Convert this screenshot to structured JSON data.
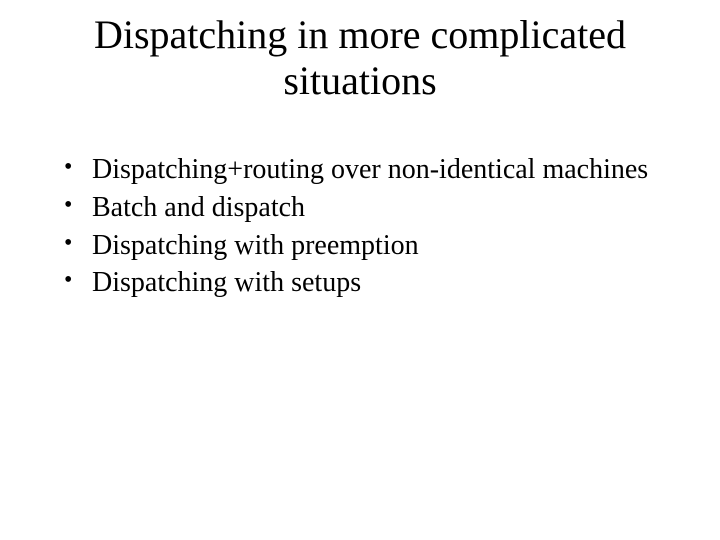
{
  "title": "Dispatching in more complicated situations",
  "bullets": [
    "Dispatching+routing over non-identical machines",
    "Batch and dispatch",
    "Dispatching with preemption",
    "Dispatching with setups"
  ],
  "style": {
    "background_color": "#ffffff",
    "text_color": "#000000",
    "font_family": "Times New Roman",
    "title_fontsize": 40,
    "bullet_fontsize": 28,
    "title_align": "center"
  }
}
